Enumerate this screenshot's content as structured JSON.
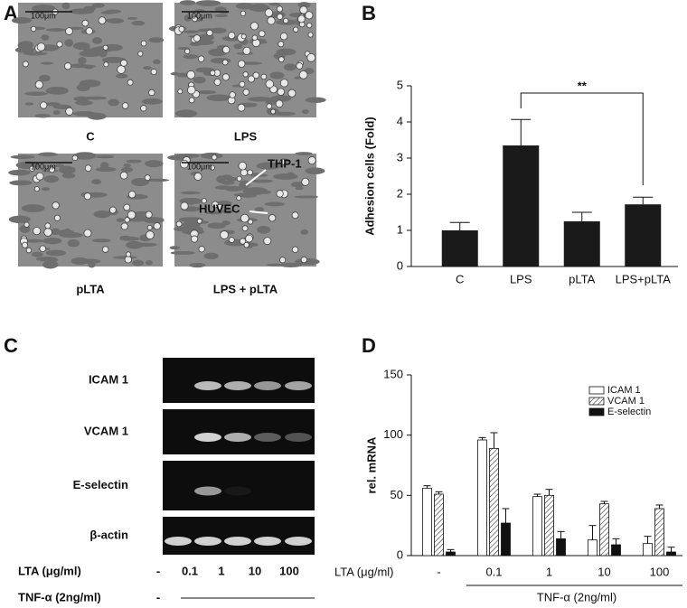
{
  "panel_labels": [
    "A",
    "B",
    "C",
    "D"
  ],
  "micrographs": [
    {
      "label": "C",
      "scale_bar": "100μm"
    },
    {
      "label": "LPS",
      "scale_bar": "100μm"
    },
    {
      "label": "pLTA",
      "scale_bar": "100μm"
    },
    {
      "label": "LPS + pLTA",
      "scale_bar": "100μm"
    }
  ],
  "micrograph_annotations": [
    "THP-1",
    "HUVEC"
  ],
  "gel": {
    "rows": [
      "ICAM 1",
      "VCAM 1",
      "E-selectin",
      "β-actin"
    ],
    "lta_label": "LTA  (μg/ml)",
    "lanes": [
      "-",
      "0.1",
      "1",
      "10",
      "100"
    ],
    "tnf_label": "TNF-α (2ng/ml)",
    "tnf_absent": "-"
  },
  "chart_data": [
    {
      "type": "bar",
      "ylabel": "Adhesion cells (Fold)",
      "categories": [
        "C",
        "LPS",
        "pLTA",
        "LPS+pLTA"
      ],
      "values": [
        1.0,
        3.35,
        1.25,
        1.72
      ],
      "errors": [
        0.22,
        0.72,
        0.25,
        0.2
      ],
      "color": "#1a1a1a",
      "ylim": [
        0,
        5
      ],
      "yticks": [
        0,
        1,
        2,
        3,
        4,
        5
      ],
      "annotation": "**"
    },
    {
      "type": "grouped_bar",
      "ylabel": "rel. mRNA",
      "xlabel": "LTA  (μg/ml)",
      "group_label": "TNF-α (2ng/ml)",
      "categories": [
        "-",
        "0.1",
        "1",
        "10",
        "100"
      ],
      "series": [
        {
          "name": "ICAM 1",
          "color": "#ffffff",
          "hatch": false,
          "values": [
            56,
            96,
            49,
            13,
            10
          ],
          "errors": [
            2,
            2,
            2,
            12,
            6
          ]
        },
        {
          "name": "VCAM 1",
          "color": "#ffffff",
          "hatch": true,
          "values": [
            51,
            89,
            50,
            43,
            39
          ],
          "errors": [
            2,
            13,
            5,
            2,
            3
          ]
        },
        {
          "name": "E-selectin",
          "color": "#111111",
          "hatch": false,
          "values": [
            3,
            27,
            14,
            9,
            3
          ],
          "errors": [
            2,
            12,
            6,
            5,
            4
          ]
        }
      ],
      "ylim": [
        0,
        150
      ],
      "yticks": [
        0,
        50,
        100,
        150
      ],
      "legend": "top-right"
    }
  ]
}
